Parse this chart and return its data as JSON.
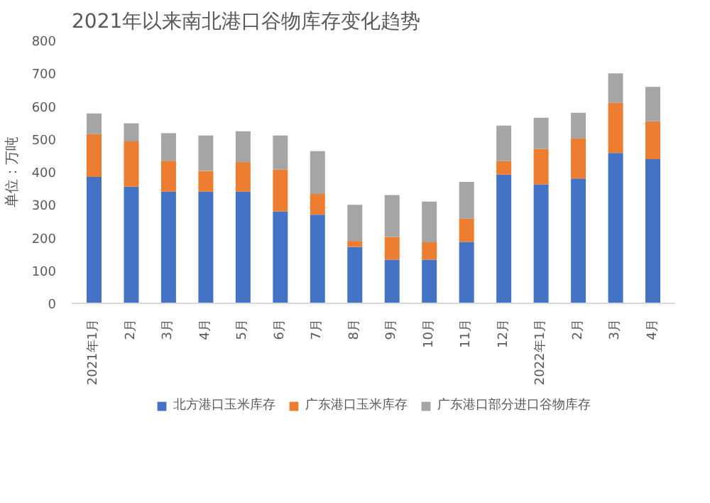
{
  "chart_data": {
    "type": "bar",
    "stacked": true,
    "title": "2021年以来南北港口谷物库存变化趋势",
    "ylabel": "单位：万吨",
    "categories": [
      "2021年1月",
      "2月",
      "3月",
      "4月",
      "5月",
      "6月",
      "7月",
      "8月",
      "9月",
      "10月",
      "11月",
      "12月",
      "2022年1月",
      "2月",
      "3月",
      "4月"
    ],
    "series": [
      {
        "name": "北方港口玉米库存",
        "color": "#4472c4",
        "values": [
          385,
          355,
          340,
          340,
          340,
          280,
          270,
          172,
          133,
          133,
          187,
          392,
          362,
          380,
          458,
          439
        ]
      },
      {
        "name": "广东港口玉米库存",
        "color": "#ed7d31",
        "values": [
          130,
          138,
          94,
          63,
          90,
          127,
          63,
          18,
          69,
          53,
          71,
          41,
          108,
          122,
          152,
          115
        ]
      },
      {
        "name": "广东港口部分进口谷物库存",
        "color": "#a5a5a5",
        "values": [
          63,
          55,
          84,
          108,
          94,
          104,
          130,
          110,
          128,
          124,
          112,
          108,
          95,
          78,
          90,
          105
        ]
      }
    ],
    "ylim": [
      0,
      800
    ],
    "yticks": [
      0,
      100,
      200,
      300,
      400,
      500,
      600,
      700,
      800
    ],
    "grid": false,
    "legend": "bottom"
  }
}
